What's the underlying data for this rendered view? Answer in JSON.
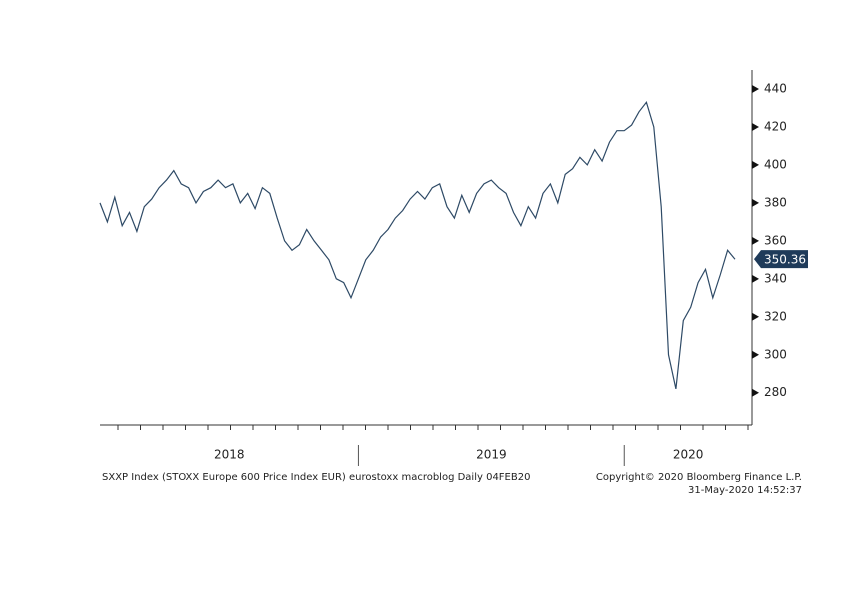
{
  "chart_data": {
    "type": "line",
    "source": "SXXP Index (STOXX Europe 600 Price Index EUR) eurostoxx macroblog  Daily 04FEB20",
    "copyright": "Copyright© 2020 Bloomberg Finance L.P.",
    "timestamp": "31-May-2020 14:52:37",
    "categories": [
      "2018",
      null,
      null,
      null,
      null,
      null,
      null,
      null,
      null,
      null,
      null,
      null,
      null,
      null,
      null,
      null,
      null,
      null,
      null,
      null,
      null,
      null,
      null,
      null,
      null,
      null,
      null,
      null,
      null,
      null,
      null,
      null,
      null,
      null,
      null,
      "2019",
      null,
      null,
      null,
      null,
      null,
      null,
      null,
      null,
      null,
      null,
      null,
      null,
      null,
      null,
      null,
      null,
      null,
      null,
      null,
      null,
      null,
      null,
      null,
      null,
      null,
      null,
      null,
      null,
      null,
      null,
      null,
      null,
      null,
      null,
      null,
      "2020",
      null,
      null,
      null,
      null,
      null,
      null,
      null,
      null,
      null,
      null,
      null,
      null,
      null,
      null,
      null
    ],
    "series": [
      {
        "name": "SXXP Index",
        "color": "#2e4a66",
        "values": [
          380,
          370,
          383,
          368,
          375,
          365,
          378,
          382,
          388,
          392,
          397,
          390,
          388,
          380,
          386,
          388,
          392,
          388,
          390,
          380,
          385,
          377,
          388,
          385,
          372,
          360,
          355,
          358,
          366,
          360,
          355,
          350,
          340,
          338,
          330,
          340,
          350,
          355,
          362,
          366,
          372,
          376,
          382,
          386,
          382,
          388,
          390,
          378,
          372,
          384,
          375,
          385,
          390,
          392,
          388,
          385,
          375,
          368,
          378,
          372,
          385,
          390,
          380,
          395,
          398,
          404,
          400,
          408,
          402,
          412,
          418,
          418,
          421,
          428,
          433,
          420,
          378,
          300,
          282,
          318,
          325,
          338,
          345,
          330,
          342,
          355,
          350.36
        ]
      }
    ],
    "ylim": [
      263,
      450
    ],
    "yticks": [
      280,
      300,
      320,
      340,
      360,
      380,
      400,
      420,
      440
    ]
  }
}
